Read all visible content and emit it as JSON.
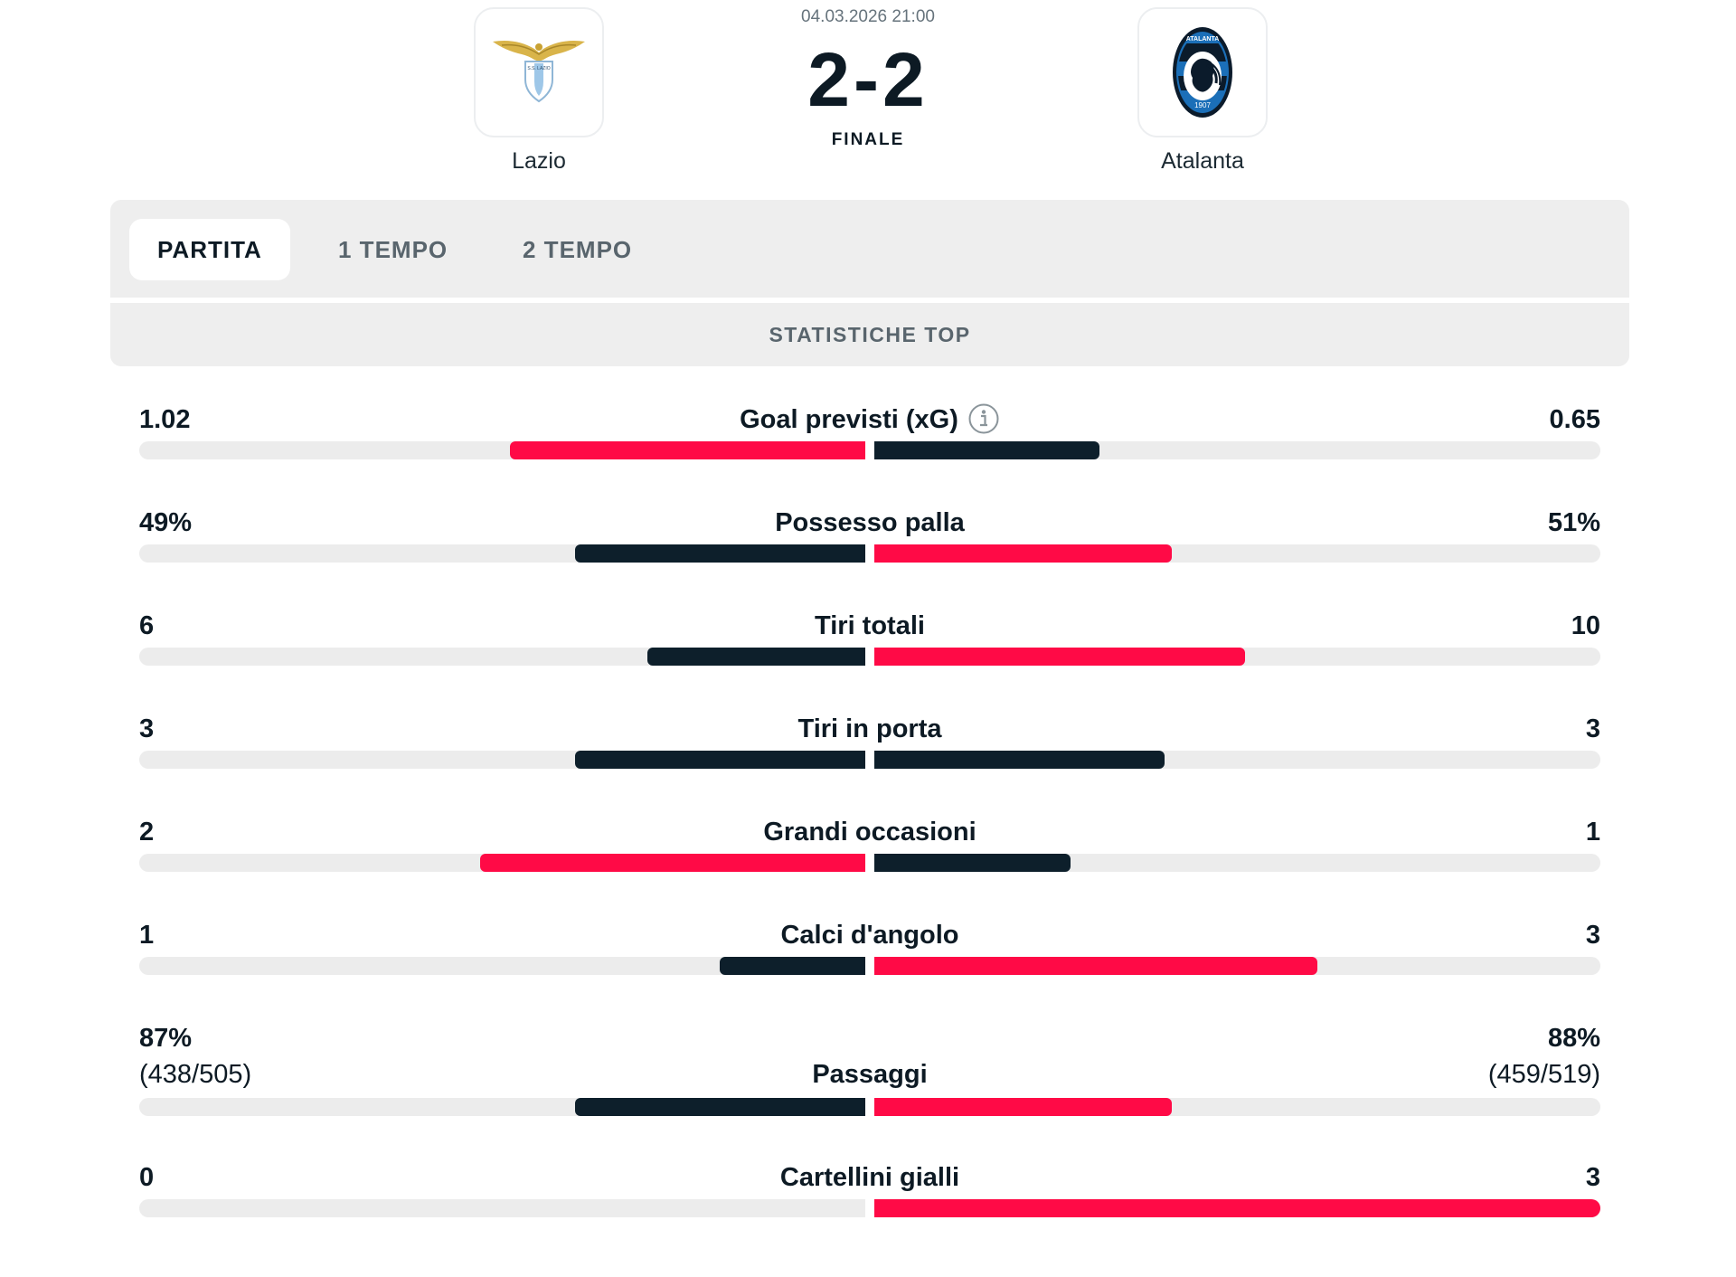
{
  "match": {
    "date": "04.03.2026 21:00",
    "score": "2-2",
    "status": "FINALE",
    "home_team": "Lazio",
    "away_team": "Atalanta",
    "home_logo_icon": "lazio-crest",
    "away_logo_icon": "atalanta-crest",
    "away_logo_text": "ATALANTA",
    "away_logo_year": "1907",
    "home_logo_text": "S.S. LAZIO"
  },
  "tabs": [
    {
      "label": "PARTITA",
      "active": true
    },
    {
      "label": "1 TEMPO",
      "active": false
    },
    {
      "label": "2 TEMPO",
      "active": false
    }
  ],
  "section_title": "STATISTICHE TOP",
  "colors": {
    "leader": "#ff0a46",
    "other": "#0d1f2b",
    "track": "#ececec"
  },
  "stats": [
    {
      "label": "Goal previsti (xG)",
      "home": "1.02",
      "away": "0.65",
      "home_fill": 0.49,
      "away_fill": 0.31,
      "home_color": "red",
      "away_color": "dark",
      "info": true
    },
    {
      "label": "Possesso palla",
      "home": "49%",
      "away": "51%",
      "home_fill": 0.4,
      "away_fill": 0.41,
      "home_color": "dark",
      "away_color": "red"
    },
    {
      "label": "Tiri totali",
      "home": "6",
      "away": "10",
      "home_fill": 0.3,
      "away_fill": 0.51,
      "home_color": "dark",
      "away_color": "red"
    },
    {
      "label": "Tiri in porta",
      "home": "3",
      "away": "3",
      "home_fill": 0.4,
      "away_fill": 0.4,
      "home_color": "dark",
      "away_color": "dark"
    },
    {
      "label": "Grandi occasioni",
      "home": "2",
      "away": "1",
      "home_fill": 0.53,
      "away_fill": 0.27,
      "home_color": "red",
      "away_color": "dark"
    },
    {
      "label": "Calci d'angolo",
      "home": "1",
      "away": "3",
      "home_fill": 0.2,
      "away_fill": 0.61,
      "home_color": "dark",
      "away_color": "red"
    },
    {
      "label": "Passaggi",
      "home": "87%",
      "away": "88%",
      "home_sub": "(438/505)",
      "away_sub": "(459/519)",
      "home_fill": 0.4,
      "away_fill": 0.41,
      "home_color": "dark",
      "away_color": "red"
    },
    {
      "label": "Cartellini gialli",
      "home": "0",
      "away": "3",
      "home_fill": 0.0,
      "away_fill": 1.0,
      "home_color": "dark",
      "away_color": "red"
    }
  ]
}
